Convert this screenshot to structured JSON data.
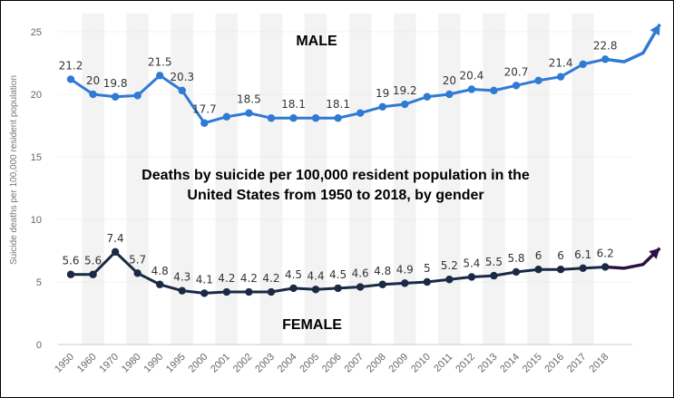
{
  "chart_data": {
    "type": "line",
    "title_lines": [
      "Deaths by suicide per 100,000 resident population in the",
      "United States from 1950 to 2018, by gender"
    ],
    "ylabel": "Suicide deaths per 100,000 resident population",
    "xlabel": "",
    "ylim": [
      0,
      25
    ],
    "yticks": [
      "0",
      "5",
      "10",
      "15",
      "20",
      "25"
    ],
    "grid": "vertical-bands",
    "categories": [
      "1950",
      "1960",
      "1970",
      "1980",
      "1990",
      "1995",
      "2000",
      "2001",
      "2002",
      "2003",
      "2004",
      "2005",
      "2006",
      "2007",
      "2008",
      "2009",
      "2010",
      "2011",
      "2012",
      "2013",
      "2014",
      "2015",
      "2016",
      "2017",
      "2018"
    ],
    "series": [
      {
        "name": "MALE",
        "color": "#2f7ad4",
        "values": [
          21.2,
          20.0,
          19.8,
          19.9,
          21.5,
          20.3,
          17.7,
          18.2,
          18.5,
          18.1,
          18.1,
          18.1,
          18.1,
          18.5,
          19.0,
          19.2,
          19.8,
          20.0,
          20.4,
          20.3,
          20.7,
          21.1,
          21.4,
          22.4,
          22.8
        ],
        "data_labels": [
          "21.2",
          "20",
          "19.8",
          "",
          "21.5",
          "20.3",
          "17.7",
          "",
          "18.5",
          "",
          "18.1",
          "",
          "18.1",
          "",
          "19",
          "19.2",
          "",
          "20",
          "20.4",
          "",
          "20.7",
          "",
          "21.4",
          "",
          "22.8"
        ],
        "trend_extension": [
          22.6,
          23.3,
          25.6
        ]
      },
      {
        "name": "FEMALE",
        "color": "#1a2a44",
        "values": [
          5.6,
          5.6,
          7.4,
          5.7,
          4.8,
          4.3,
          4.1,
          4.2,
          4.2,
          4.2,
          4.5,
          4.4,
          4.5,
          4.6,
          4.8,
          4.9,
          5.0,
          5.2,
          5.4,
          5.5,
          5.8,
          6.0,
          6.0,
          6.1,
          6.2
        ],
        "data_labels": [
          "5.6",
          "5.6",
          "7.4",
          "5.7",
          "4.8",
          "4.3",
          "4.1",
          "4.2",
          "4.2",
          "4.2",
          "4.5",
          "4.4",
          "4.5",
          "4.6",
          "4.8",
          "4.9",
          "5",
          "5.2",
          "5.4",
          "5.5",
          "5.8",
          "6",
          "6",
          "6.1",
          "6.2"
        ],
        "trend_extension": [
          6.1,
          6.4,
          7.7
        ],
        "extension_color": "#2c1140"
      }
    ]
  }
}
